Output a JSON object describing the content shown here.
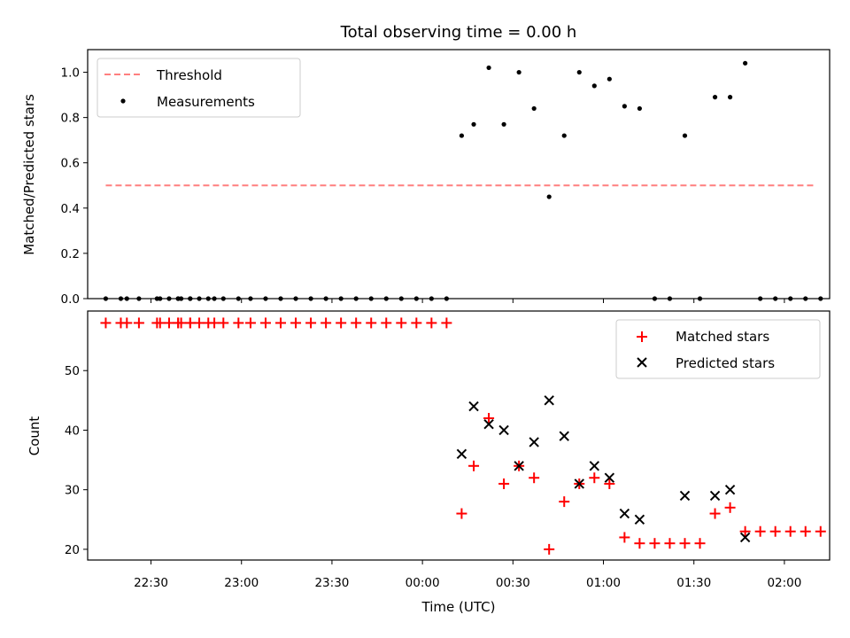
{
  "title": "Total observing time = 0.00 h",
  "colors": {
    "threshold": "#ff7f7f",
    "matched": "#ff0000",
    "predicted": "#000000",
    "measurement": "#000000"
  },
  "chart_data": [
    {
      "type": "scatter",
      "panel": "top",
      "ylabel": "Matched/Predicted stars",
      "ylim": [
        0,
        1.1
      ],
      "xlim": [
        "22:09",
        "02:15"
      ],
      "yticks": [
        "0.0",
        "0.2",
        "0.4",
        "0.6",
        "0.8",
        "1.0"
      ],
      "legend": {
        "placement": "top-left",
        "entries": [
          "Threshold",
          "Measurements"
        ]
      },
      "threshold": {
        "name": "Threshold",
        "value": 0.5,
        "x_start": "22:15",
        "x_end": "02:10",
        "style": "dashed"
      },
      "series": [
        {
          "name": "Measurements",
          "x": [
            "22:15",
            "22:20",
            "22:22",
            "22:26",
            "22:32",
            "22:33",
            "22:36",
            "22:39",
            "22:39",
            "22:40",
            "22:43",
            "22:43",
            "22:46",
            "22:49",
            "22:51",
            "22:54",
            "22:59",
            "23:03",
            "23:08",
            "23:13",
            "23:18",
            "23:23",
            "23:28",
            "23:33",
            "23:38",
            "23:43",
            "23:48",
            "23:53",
            "23:58",
            "00:03",
            "00:08",
            "00:13",
            "00:17",
            "00:22",
            "00:27",
            "00:32",
            "00:37",
            "00:42",
            "00:47",
            "00:52",
            "00:57",
            "01:02",
            "01:07",
            "01:12",
            "01:17",
            "01:22",
            "01:27",
            "01:32",
            "01:37",
            "01:42",
            "01:47",
            "01:52",
            "01:57",
            "02:02",
            "02:07",
            "02:12"
          ],
          "y": [
            0,
            0,
            0,
            0,
            0,
            0,
            0,
            0,
            0,
            0,
            0,
            0,
            0,
            0,
            0,
            0,
            0,
            0,
            0,
            0,
            0,
            0,
            0,
            0,
            0,
            0,
            0,
            0,
            0,
            0,
            0,
            0.72,
            0.77,
            1.02,
            0.77,
            1.0,
            0.84,
            0.45,
            0.72,
            1.0,
            0.94,
            0.97,
            0.85,
            0.84,
            0,
            0,
            0.72,
            0,
            0.89,
            0.89,
            1.04,
            0,
            0,
            0,
            0,
            0
          ]
        }
      ]
    },
    {
      "type": "scatter",
      "panel": "bottom",
      "xlabel": "Time (UTC)",
      "ylabel": "Count",
      "ylim": [
        18.2,
        60
      ],
      "xlim": [
        "22:09",
        "02:15"
      ],
      "yticks": [
        "20",
        "30",
        "40",
        "50"
      ],
      "xticks": [
        "22:30",
        "23:00",
        "23:30",
        "00:00",
        "00:30",
        "01:00",
        "01:30",
        "02:00"
      ],
      "legend": {
        "placement": "top-right",
        "entries": [
          "Matched stars",
          "Predicted stars"
        ]
      },
      "series": [
        {
          "name": "Matched stars",
          "x": [
            "22:15",
            "22:20",
            "22:22",
            "22:26",
            "22:32",
            "22:33",
            "22:36",
            "22:39",
            "22:39",
            "22:40",
            "22:43",
            "22:43",
            "22:46",
            "22:49",
            "22:51",
            "22:54",
            "22:59",
            "23:03",
            "23:08",
            "23:13",
            "23:18",
            "23:23",
            "23:28",
            "23:33",
            "23:38",
            "23:43",
            "23:48",
            "23:53",
            "23:58",
            "00:03",
            "00:08",
            "00:13",
            "00:17",
            "00:22",
            "00:27",
            "00:32",
            "00:37",
            "00:42",
            "00:47",
            "00:52",
            "00:57",
            "01:02",
            "01:07",
            "01:12",
            "01:17",
            "01:22",
            "01:27",
            "01:32",
            "01:37",
            "01:42",
            "01:47",
            "01:52",
            "01:57",
            "02:02",
            "02:07",
            "02:12"
          ],
          "y": [
            58,
            58,
            58,
            58,
            58,
            58,
            58,
            58,
            58,
            58,
            58,
            58,
            58,
            58,
            58,
            58,
            58,
            58,
            58,
            58,
            58,
            58,
            58,
            58,
            58,
            58,
            58,
            58,
            58,
            58,
            58,
            26,
            34,
            42,
            31,
            34,
            32,
            20,
            28,
            31,
            32,
            31,
            22,
            21,
            21,
            21,
            21,
            21,
            26,
            27,
            23,
            23,
            23,
            23,
            23,
            23
          ]
        },
        {
          "name": "Predicted stars",
          "x": [
            "00:13",
            "00:17",
            "00:22",
            "00:27",
            "00:32",
            "00:37",
            "00:42",
            "00:47",
            "00:52",
            "00:57",
            "01:02",
            "01:07",
            "01:12",
            "01:27",
            "01:37",
            "01:42",
            "01:47"
          ],
          "y": [
            36,
            44,
            41,
            40,
            34,
            38,
            45,
            39,
            31,
            34,
            32,
            26,
            25,
            29,
            29,
            30,
            22
          ]
        }
      ]
    }
  ]
}
